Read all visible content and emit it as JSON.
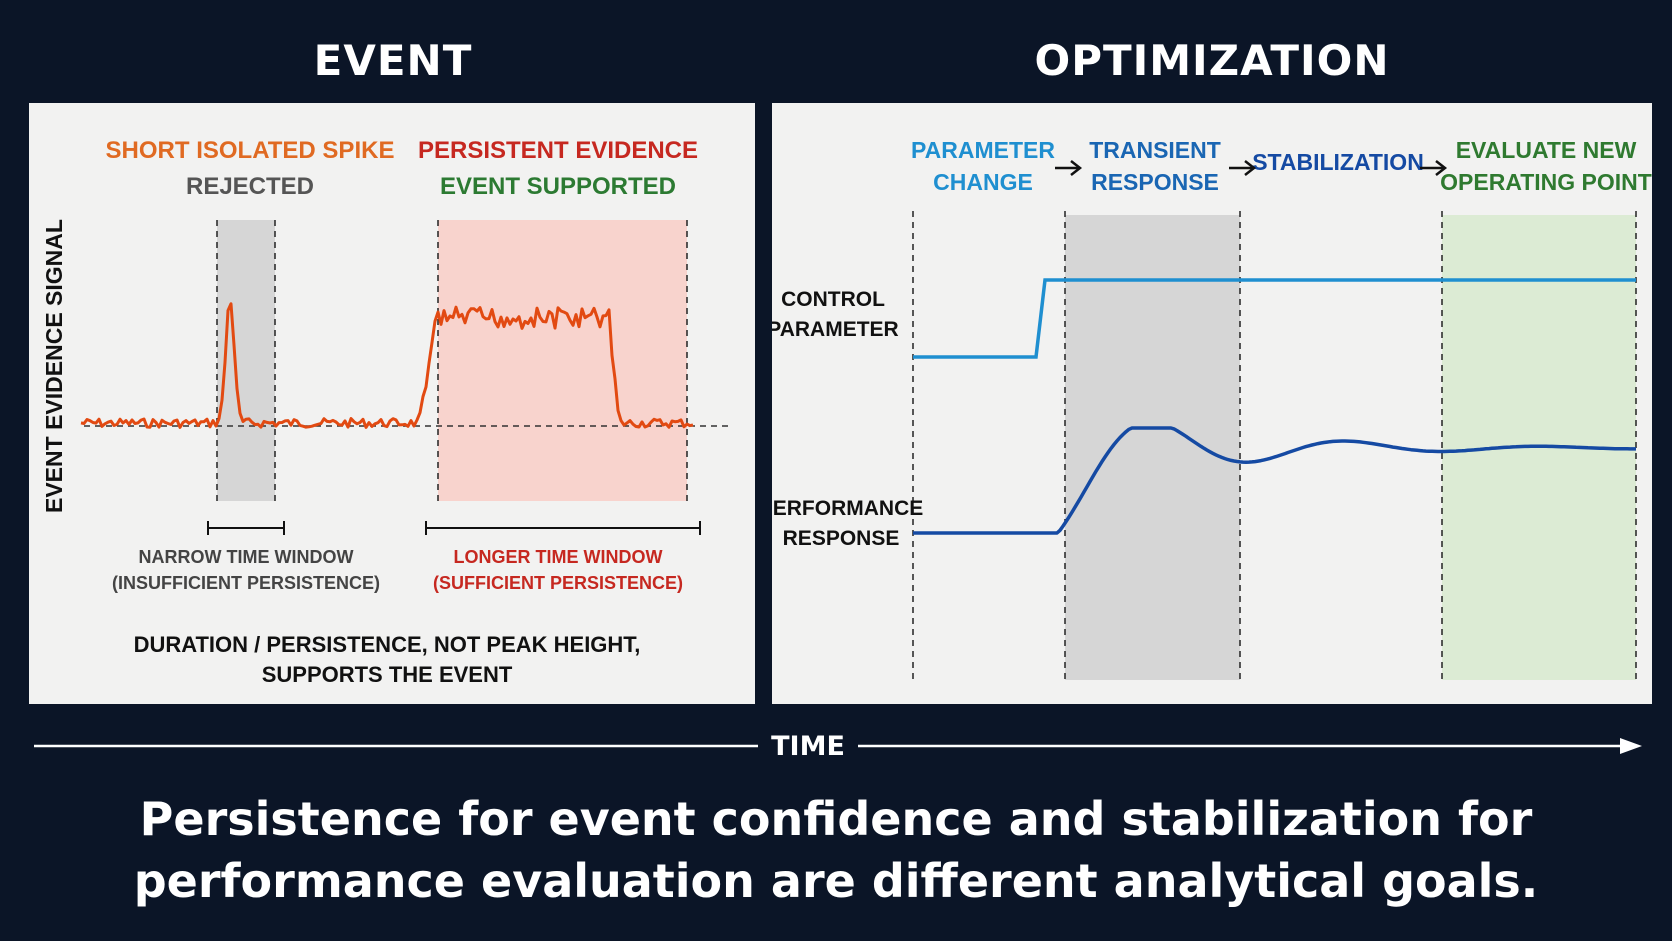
{
  "colors": {
    "background": "#0b1527",
    "panel": "#f2f2f1",
    "orange_signal": "#e24a12",
    "red_text": "#c62820",
    "green_text": "#2c7a32",
    "gray_text": "#555555",
    "light_blue": "#1f8fd0",
    "mid_blue": "#1a66b3",
    "dark_blue": "#154aa3",
    "dark_green_text": "#2f7a30",
    "gray_band": "#d6d6d6",
    "pink_band": "#f8d3cd",
    "green_band": "#dcebd4"
  },
  "event": {
    "heading": "EVENT",
    "y_axis_label": "EVENT EVIDENCE SIGNAL",
    "spike": {
      "title": "SHORT ISOLATED SPIKE",
      "verdict": "REJECTED",
      "window_line1": "NARROW TIME WINDOW",
      "window_line2": "(INSUFFICIENT PERSISTENCE)"
    },
    "persistent": {
      "title": "PERSISTENT EVIDENCE",
      "verdict": "EVENT SUPPORTED",
      "window_line1": "LONGER TIME WINDOW",
      "window_line2": "(SUFFICIENT PERSISTENCE)"
    },
    "takeaway_line1": "DURATION / PERSISTENCE, NOT PEAK HEIGHT,",
    "takeaway_line2": "SUPPORTS THE EVENT"
  },
  "optimization": {
    "heading": "OPTIMIZATION",
    "stages": [
      {
        "line1": "PARAMETER",
        "line2": "CHANGE"
      },
      {
        "line1": "TRANSIENT",
        "line2": "RESPONSE"
      },
      {
        "line1": "STABILIZATION",
        "line2": ""
      },
      {
        "line1": "EVALUATE NEW",
        "line2": "OPERATING POINT"
      }
    ],
    "control_label_line1": "CONTROL",
    "control_label_line2": "PARAMETER",
    "performance_label_line1": "PERFORMANCE",
    "performance_label_line2": "RESPONSE"
  },
  "time_label": "TIME",
  "conclusion_line1": "Persistence for event confidence and stabilization for",
  "conclusion_line2": "performance evaluation are different analytical goals."
}
